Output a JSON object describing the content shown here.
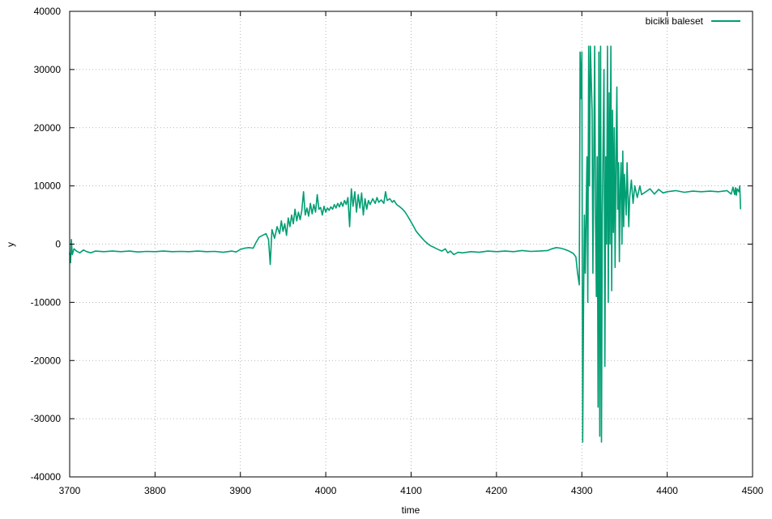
{
  "chart_data": {
    "type": "line",
    "title": "",
    "xlabel": "time",
    "ylabel": "y",
    "xlim": [
      3700,
      4500
    ],
    "ylim": [
      -40000,
      40000
    ],
    "x_ticks": [
      3700,
      3800,
      3900,
      4000,
      4100,
      4200,
      4300,
      4400,
      4500
    ],
    "y_ticks": [
      -40000,
      -30000,
      -20000,
      -10000,
      0,
      10000,
      20000,
      30000,
      40000
    ],
    "grid": true,
    "legend_position": "top-right",
    "series": [
      {
        "name": "bicikli baleset",
        "color": "#009e73",
        "points": [
          [
            3700,
            -1500
          ],
          [
            3701,
            -3200
          ],
          [
            3702,
            800
          ],
          [
            3703,
            -1800
          ],
          [
            3705,
            -800
          ],
          [
            3708,
            -1200
          ],
          [
            3712,
            -1500
          ],
          [
            3716,
            -1000
          ],
          [
            3720,
            -1300
          ],
          [
            3725,
            -1500
          ],
          [
            3730,
            -1200
          ],
          [
            3740,
            -1300
          ],
          [
            3750,
            -1200
          ],
          [
            3760,
            -1300
          ],
          [
            3770,
            -1200
          ],
          [
            3780,
            -1350
          ],
          [
            3790,
            -1250
          ],
          [
            3800,
            -1300
          ],
          [
            3810,
            -1200
          ],
          [
            3820,
            -1300
          ],
          [
            3830,
            -1250
          ],
          [
            3840,
            -1300
          ],
          [
            3850,
            -1200
          ],
          [
            3860,
            -1300
          ],
          [
            3870,
            -1250
          ],
          [
            3880,
            -1400
          ],
          [
            3890,
            -1200
          ],
          [
            3895,
            -1350
          ],
          [
            3900,
            -900
          ],
          [
            3905,
            -700
          ],
          [
            3910,
            -600
          ],
          [
            3915,
            -700
          ],
          [
            3918,
            200
          ],
          [
            3922,
            1200
          ],
          [
            3926,
            1500
          ],
          [
            3930,
            1800
          ],
          [
            3933,
            800
          ],
          [
            3935,
            -3500
          ],
          [
            3937,
            2500
          ],
          [
            3940,
            1000
          ],
          [
            3943,
            3000
          ],
          [
            3946,
            1800
          ],
          [
            3948,
            4000
          ],
          [
            3950,
            2200
          ],
          [
            3952,
            3500
          ],
          [
            3954,
            1500
          ],
          [
            3956,
            4500
          ],
          [
            3958,
            3000
          ],
          [
            3960,
            5000
          ],
          [
            3962,
            3500
          ],
          [
            3964,
            6000
          ],
          [
            3966,
            4000
          ],
          [
            3968,
            5500
          ],
          [
            3970,
            4200
          ],
          [
            3972,
            5800
          ],
          [
            3974,
            9000
          ],
          [
            3976,
            5000
          ],
          [
            3978,
            6200
          ],
          [
            3980,
            4800
          ],
          [
            3982,
            7000
          ],
          [
            3984,
            5200
          ],
          [
            3986,
            6800
          ],
          [
            3988,
            5500
          ],
          [
            3990,
            8500
          ],
          [
            3992,
            6000
          ],
          [
            3994,
            6300
          ],
          [
            3996,
            5000
          ],
          [
            3998,
            6500
          ],
          [
            4000,
            5500
          ],
          [
            4002,
            6200
          ],
          [
            4004,
            5800
          ],
          [
            4006,
            6400
          ],
          [
            4008,
            6000
          ],
          [
            4010,
            6800
          ],
          [
            4012,
            6200
          ],
          [
            4014,
            7000
          ],
          [
            4016,
            6400
          ],
          [
            4018,
            7200
          ],
          [
            4020,
            6500
          ],
          [
            4022,
            7500
          ],
          [
            4024,
            6800
          ],
          [
            4026,
            8000
          ],
          [
            4028,
            3000
          ],
          [
            4030,
            9500
          ],
          [
            4032,
            6500
          ],
          [
            4034,
            9000
          ],
          [
            4036,
            5500
          ],
          [
            4038,
            8500
          ],
          [
            4040,
            6200
          ],
          [
            4042,
            8800
          ],
          [
            4044,
            5000
          ],
          [
            4046,
            7800
          ],
          [
            4048,
            6000
          ],
          [
            4050,
            7500
          ],
          [
            4052,
            6800
          ],
          [
            4055,
            7800
          ],
          [
            4058,
            7000
          ],
          [
            4060,
            8000
          ],
          [
            4062,
            7200
          ],
          [
            4065,
            7600
          ],
          [
            4068,
            7000
          ],
          [
            4070,
            9000
          ],
          [
            4072,
            7500
          ],
          [
            4075,
            7800
          ],
          [
            4078,
            7200
          ],
          [
            4080,
            7500
          ],
          [
            4083,
            6800
          ],
          [
            4086,
            6500
          ],
          [
            4090,
            6000
          ],
          [
            4093,
            5500
          ],
          [
            4096,
            4800
          ],
          [
            4100,
            3800
          ],
          [
            4103,
            3000
          ],
          [
            4106,
            2200
          ],
          [
            4110,
            1500
          ],
          [
            4113,
            1000
          ],
          [
            4116,
            500
          ],
          [
            4120,
            0
          ],
          [
            4123,
            -300
          ],
          [
            4126,
            -500
          ],
          [
            4130,
            -800
          ],
          [
            4133,
            -1000
          ],
          [
            4136,
            -1200
          ],
          [
            4140,
            -800
          ],
          [
            4143,
            -1500
          ],
          [
            4146,
            -1200
          ],
          [
            4150,
            -1800
          ],
          [
            4155,
            -1400
          ],
          [
            4160,
            -1500
          ],
          [
            4170,
            -1300
          ],
          [
            4180,
            -1400
          ],
          [
            4190,
            -1200
          ],
          [
            4200,
            -1300
          ],
          [
            4210,
            -1200
          ],
          [
            4220,
            -1300
          ],
          [
            4230,
            -1100
          ],
          [
            4240,
            -1250
          ],
          [
            4250,
            -1200
          ],
          [
            4260,
            -1100
          ],
          [
            4265,
            -800
          ],
          [
            4270,
            -600
          ],
          [
            4275,
            -700
          ],
          [
            4280,
            -900
          ],
          [
            4285,
            -1200
          ],
          [
            4290,
            -1600
          ],
          [
            4293,
            -2200
          ],
          [
            4295,
            -5000
          ],
          [
            4297,
            -7000
          ],
          [
            4298,
            33000
          ],
          [
            4299,
            25000
          ],
          [
            4300,
            33000
          ],
          [
            4301,
            -34000
          ],
          [
            4302,
            -10000
          ],
          [
            4303,
            5000
          ],
          [
            4304,
            -5000
          ],
          [
            4306,
            15000
          ],
          [
            4307,
            -10000
          ],
          [
            4308,
            34000
          ],
          [
            4309,
            10000
          ],
          [
            4310,
            34000
          ],
          [
            4312,
            23000
          ],
          [
            4313,
            -5000
          ],
          [
            4315,
            34000
          ],
          [
            4316,
            5000
          ],
          [
            4317,
            -9000
          ],
          [
            4318,
            15000
          ],
          [
            4319,
            -28000
          ],
          [
            4320,
            33000
          ],
          [
            4321,
            -33000
          ],
          [
            4322,
            34000
          ],
          [
            4323,
            -34000
          ],
          [
            4324,
            5000
          ],
          [
            4326,
            30000
          ],
          [
            4327,
            -21000
          ],
          [
            4328,
            15000
          ],
          [
            4329,
            0
          ],
          [
            4330,
            34000
          ],
          [
            4331,
            -10000
          ],
          [
            4332,
            26000
          ],
          [
            4333,
            0
          ],
          [
            4334,
            34000
          ],
          [
            4335,
            -8000
          ],
          [
            4336,
            23000
          ],
          [
            4337,
            2000
          ],
          [
            4338,
            20000
          ],
          [
            4339,
            -4000
          ],
          [
            4340,
            14000
          ],
          [
            4341,
            27000
          ],
          [
            4342,
            6000
          ],
          [
            4343,
            14000
          ],
          [
            4344,
            -3000
          ],
          [
            4345,
            10000
          ],
          [
            4346,
            14000
          ],
          [
            4347,
            0
          ],
          [
            4348,
            16000
          ],
          [
            4349,
            3000
          ],
          [
            4350,
            12000
          ],
          [
            4352,
            5000
          ],
          [
            4353,
            14000
          ],
          [
            4355,
            3000
          ],
          [
            4356,
            8000
          ],
          [
            4358,
            11000
          ],
          [
            4360,
            7000
          ],
          [
            4362,
            10000
          ],
          [
            4365,
            8000
          ],
          [
            4368,
            10000
          ],
          [
            4370,
            8500
          ],
          [
            4375,
            9000
          ],
          [
            4380,
            9500
          ],
          [
            4385,
            8600
          ],
          [
            4390,
            9400
          ],
          [
            4395,
            8800
          ],
          [
            4400,
            9000
          ],
          [
            4410,
            9200
          ],
          [
            4420,
            8900
          ],
          [
            4430,
            9100
          ],
          [
            4440,
            9000
          ],
          [
            4450,
            9100
          ],
          [
            4460,
            9000
          ],
          [
            4470,
            9200
          ],
          [
            4475,
            8600
          ],
          [
            4477,
            9800
          ],
          [
            4479,
            8500
          ],
          [
            4480,
            9700
          ],
          [
            4481,
            8400
          ],
          [
            4482,
            9500
          ],
          [
            4484,
            9000
          ],
          [
            4485,
            10000
          ],
          [
            4486,
            6000
          ]
        ]
      }
    ]
  }
}
